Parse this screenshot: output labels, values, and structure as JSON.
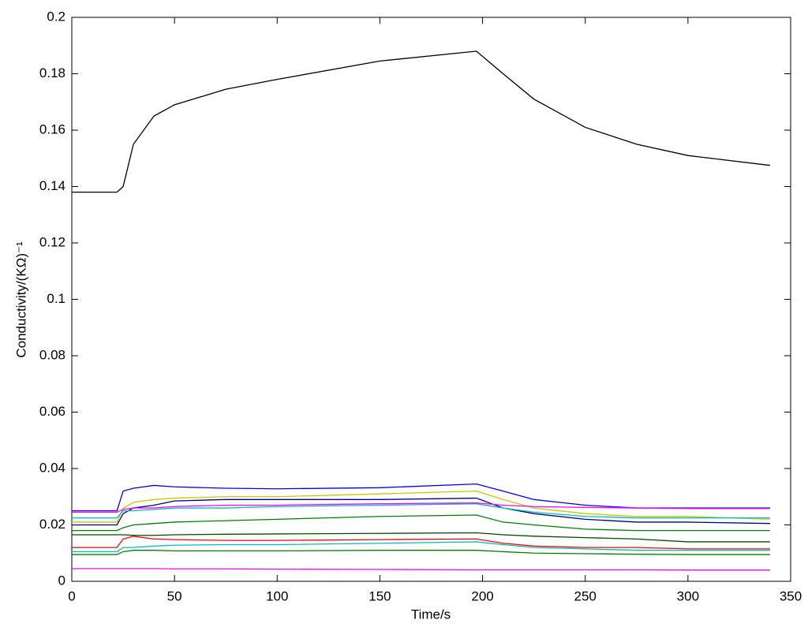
{
  "chart_data": {
    "type": "line",
    "xlabel": "Time/s",
    "ylabel": "Conductivity/(KΩ)⁻¹",
    "x": [
      0,
      22,
      25,
      30,
      40,
      50,
      75,
      100,
      150,
      197,
      210,
      225,
      250,
      275,
      300,
      340
    ],
    "series": [
      {
        "color": "#000000",
        "values": [
          0.138,
          0.138,
          0.14,
          0.155,
          0.165,
          0.169,
          0.1745,
          0.178,
          0.1845,
          0.188,
          0.18,
          0.171,
          0.161,
          0.155,
          0.151,
          0.1475
        ]
      },
      {
        "color": "#0000ff",
        "values": [
          0.025,
          0.025,
          0.032,
          0.033,
          0.034,
          0.0335,
          0.033,
          0.0328,
          0.0332,
          0.0345,
          0.032,
          0.029,
          0.027,
          0.026,
          0.026,
          0.026
        ]
      },
      {
        "color": "#c8c800",
        "values": [
          0.021,
          0.021,
          0.026,
          0.028,
          0.029,
          0.0295,
          0.03,
          0.03,
          0.031,
          0.032,
          0.029,
          0.026,
          0.024,
          0.023,
          0.023,
          0.022
        ]
      },
      {
        "color": "#00008b",
        "values": [
          0.02,
          0.02,
          0.024,
          0.026,
          0.027,
          0.0285,
          0.029,
          0.029,
          0.029,
          0.0295,
          0.026,
          0.024,
          0.022,
          0.021,
          0.021,
          0.0205
        ]
      },
      {
        "color": "#00bfbf",
        "values": [
          0.0225,
          0.0225,
          0.025,
          0.025,
          0.0255,
          0.026,
          0.026,
          0.0265,
          0.027,
          0.0275,
          0.026,
          0.0245,
          0.023,
          0.0225,
          0.0225,
          0.0225
        ]
      },
      {
        "color": "#ff00ff",
        "values": [
          0.0245,
          0.0245,
          0.0255,
          0.026,
          0.026,
          0.0265,
          0.027,
          0.027,
          0.0275,
          0.0278,
          0.027,
          0.0265,
          0.0262,
          0.026,
          0.0258,
          0.0258
        ]
      },
      {
        "color": "#008000",
        "values": [
          0.018,
          0.018,
          0.019,
          0.02,
          0.0205,
          0.021,
          0.0215,
          0.022,
          0.023,
          0.0235,
          0.021,
          0.02,
          0.0185,
          0.018,
          0.018,
          0.018
        ]
      },
      {
        "color": "#004d00",
        "values": [
          0.0165,
          0.0165,
          0.0165,
          0.0163,
          0.0163,
          0.0165,
          0.0167,
          0.0168,
          0.017,
          0.0172,
          0.0165,
          0.016,
          0.0155,
          0.015,
          0.014,
          0.014
        ]
      },
      {
        "color": "#ff0000",
        "values": [
          0.012,
          0.012,
          0.015,
          0.016,
          0.015,
          0.0148,
          0.0145,
          0.0145,
          0.0148,
          0.015,
          0.0135,
          0.0125,
          0.012,
          0.012,
          0.0115,
          0.0115
        ]
      },
      {
        "color": "#00bfbf",
        "values": [
          0.0105,
          0.0105,
          0.012,
          0.012,
          0.0125,
          0.0128,
          0.013,
          0.013,
          0.0135,
          0.014,
          0.013,
          0.012,
          0.0115,
          0.011,
          0.011,
          0.011
        ]
      },
      {
        "color": "#008000",
        "values": [
          0.0095,
          0.0095,
          0.0105,
          0.011,
          0.011,
          0.0108,
          0.0108,
          0.0108,
          0.011,
          0.011,
          0.0105,
          0.01,
          0.0098,
          0.0096,
          0.0095,
          0.0095
        ]
      },
      {
        "color": "#ff00ff",
        "values": [
          0.0045,
          0.0045,
          0.0045,
          0.0045,
          0.0045,
          0.0044,
          0.0044,
          0.0043,
          0.0042,
          0.0041,
          0.0041,
          0.0041,
          0.0041,
          0.0041,
          0.004,
          0.004
        ]
      }
    ],
    "xlim": [
      0,
      350
    ],
    "xticks": [
      0,
      50,
      100,
      150,
      200,
      250,
      300,
      350
    ],
    "ylim": [
      0,
      0.2
    ],
    "yticks": [
      0,
      0.02,
      0.04,
      0.06,
      0.08,
      0.1,
      0.12,
      0.14,
      0.16,
      0.18,
      0.2
    ],
    "grid": false
  }
}
